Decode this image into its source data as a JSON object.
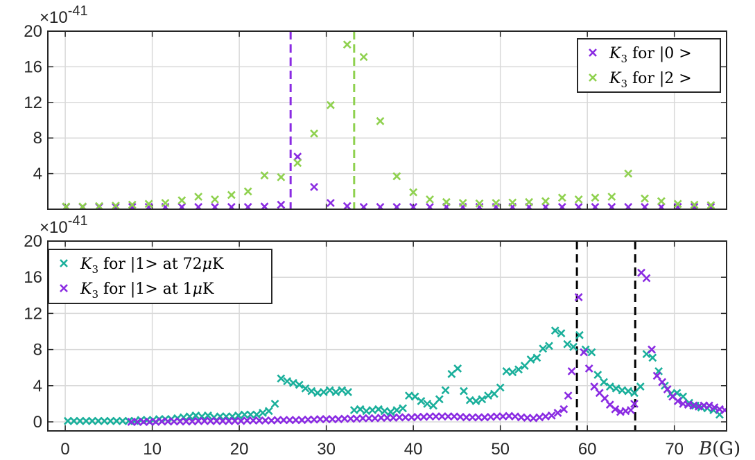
{
  "chart_data": [
    {
      "type": "scatter",
      "panel": "top",
      "multiplier": {
        "base": "×10",
        "exp": "-41"
      },
      "ylim": [
        0,
        20
      ],
      "yticks": [
        4,
        8,
        12,
        16,
        20
      ],
      "xlim": [
        -2,
        76
      ],
      "xticks": [
        0,
        10,
        20,
        30,
        40,
        50,
        60,
        70
      ],
      "xticklabels": [],
      "grid": true,
      "legend_position": "top-right",
      "vlines": [
        {
          "x": 25.9,
          "color": "#8a2be2",
          "style": "dashed"
        },
        {
          "x": 33.2,
          "color": "#8fd14f",
          "style": "dashed"
        }
      ],
      "series": [
        {
          "name": "K3 for |0 >",
          "legend": {
            "sym": "K",
            "sub": "3",
            "rest": " for |0 >"
          },
          "color": "#8a2be2",
          "x": [
            0.1,
            2.0,
            3.9,
            5.8,
            7.7,
            9.6,
            11.5,
            13.4,
            15.3,
            17.2,
            19.1,
            21.0,
            22.9,
            24.8,
            26.7,
            28.6,
            30.5,
            32.4,
            34.3,
            36.2,
            38.1,
            40.0,
            41.9,
            43.8,
            45.7,
            47.6,
            49.5,
            51.4,
            53.3,
            55.2,
            57.1,
            59.0,
            60.9,
            62.8,
            64.7,
            66.6,
            68.5,
            70.4,
            72.3,
            74.2
          ],
          "y": [
            0.25,
            0.25,
            0.25,
            0.25,
            0.25,
            0.25,
            0.25,
            0.25,
            0.25,
            0.25,
            0.25,
            0.25,
            0.3,
            0.5,
            5.9,
            2.5,
            0.7,
            0.35,
            0.25,
            0.25,
            0.25,
            0.25,
            0.25,
            0.25,
            0.25,
            0.25,
            0.25,
            0.25,
            0.25,
            0.25,
            0.25,
            0.25,
            0.25,
            0.25,
            0.25,
            0.25,
            0.25,
            0.25,
            0.25,
            0.25
          ]
        },
        {
          "name": "K3 for |2 >",
          "legend": {
            "sym": "K",
            "sub": "3",
            "rest": " for |2 >"
          },
          "color": "#8fd14f",
          "x": [
            0.1,
            2.0,
            3.9,
            5.8,
            7.7,
            9.6,
            11.5,
            13.4,
            15.3,
            17.2,
            19.1,
            21.0,
            22.9,
            24.8,
            26.7,
            28.6,
            30.5,
            32.4,
            34.3,
            36.2,
            38.1,
            40.0,
            41.9,
            43.8,
            45.7,
            47.6,
            49.5,
            51.4,
            53.3,
            55.2,
            57.1,
            59.0,
            60.9,
            62.8,
            64.7,
            66.6,
            68.5,
            70.4,
            72.3,
            74.2
          ],
          "y": [
            0.3,
            0.3,
            0.35,
            0.4,
            0.5,
            0.6,
            0.7,
            1.0,
            1.4,
            1.1,
            1.6,
            2.0,
            3.8,
            3.6,
            5.2,
            8.5,
            11.7,
            18.5,
            17.1,
            9.9,
            3.7,
            1.9,
            1.1,
            0.8,
            0.7,
            0.65,
            0.7,
            0.75,
            0.8,
            0.9,
            1.3,
            1.1,
            1.3,
            1.4,
            4.0,
            1.2,
            0.9,
            0.6,
            0.5,
            0.45
          ]
        }
      ]
    },
    {
      "type": "scatter",
      "panel": "bottom",
      "multiplier": {
        "base": "×10",
        "exp": "-41"
      },
      "ylim": [
        -1,
        20
      ],
      "yticks": [
        0,
        4,
        8,
        12,
        16,
        20
      ],
      "xlim": [
        -2,
        76
      ],
      "xticks": [
        0,
        10,
        20,
        30,
        40,
        50,
        60,
        70
      ],
      "xticklabels": [
        "0",
        "10",
        "20",
        "30",
        "40",
        "50",
        "60",
        "70"
      ],
      "xlabel": {
        "sym": "B",
        "rest": "(G)"
      },
      "grid": true,
      "legend_position": "top-left",
      "vlines": [
        {
          "x": 58.8,
          "color": "#000000",
          "style": "dashed"
        },
        {
          "x": 65.5,
          "color": "#000000",
          "style": "dashed"
        }
      ],
      "series": [
        {
          "name": "K3 for |1> at 72μK",
          "legend": {
            "sym": "K",
            "sub": "3",
            "rest": " for |1>  at 72",
            "mu": "μ",
            "unit": "K"
          },
          "color": "#1aaf9b",
          "x": [
            0.3,
            1.0,
            1.7,
            2.4,
            3.1,
            3.8,
            4.5,
            5.2,
            5.9,
            6.6,
            7.3,
            8.0,
            8.7,
            9.4,
            10.1,
            10.8,
            11.5,
            12.2,
            12.9,
            13.6,
            14.3,
            15.0,
            15.7,
            16.4,
            17.1,
            17.8,
            18.5,
            19.2,
            19.9,
            20.6,
            21.3,
            22.0,
            22.7,
            23.4,
            24.1,
            24.8,
            25.5,
            26.2,
            26.9,
            27.6,
            28.3,
            29.0,
            29.7,
            30.4,
            31.1,
            31.8,
            32.5,
            33.2,
            33.9,
            34.6,
            35.3,
            36.0,
            36.7,
            37.4,
            38.1,
            38.8,
            39.5,
            40.2,
            40.9,
            41.6,
            42.3,
            43.0,
            43.7,
            44.4,
            45.1,
            45.8,
            46.5,
            47.2,
            47.9,
            48.6,
            49.3,
            50.0,
            50.7,
            51.4,
            52.1,
            52.8,
            53.5,
            54.2,
            54.9,
            55.6,
            56.3,
            57.0,
            57.7,
            58.4,
            59.1,
            59.8,
            60.5,
            61.2,
            61.9,
            62.6,
            63.3,
            64.0,
            64.7,
            65.4,
            66.1,
            66.8,
            67.5,
            68.2,
            68.9,
            69.6,
            70.3,
            71.0,
            71.7,
            72.4,
            73.1,
            73.8,
            74.5,
            75.2
          ],
          "y": [
            0.1,
            0.1,
            0.1,
            0.1,
            0.1,
            0.1,
            0.1,
            0.1,
            0.1,
            0.1,
            0.1,
            0.1,
            0.2,
            0.2,
            0.2,
            0.3,
            0.3,
            0.3,
            0.4,
            0.5,
            0.6,
            0.7,
            0.6,
            0.7,
            0.5,
            0.6,
            0.6,
            0.6,
            0.7,
            0.8,
            0.8,
            0.8,
            1.0,
            1.2,
            2.0,
            4.8,
            4.5,
            4.3,
            4.1,
            3.7,
            3.4,
            3.2,
            3.3,
            3.5,
            3.3,
            3.5,
            3.3,
            1.3,
            1.4,
            1.2,
            1.3,
            1.4,
            1.2,
            1.1,
            1.3,
            1.5,
            2.9,
            2.8,
            2.3,
            2.0,
            1.8,
            2.5,
            3.5,
            5.3,
            5.9,
            3.4,
            2.4,
            2.3,
            2.5,
            2.9,
            3.1,
            3.8,
            5.6,
            5.5,
            5.8,
            6.2,
            6.9,
            7.1,
            8.1,
            8.4,
            10.1,
            9.8,
            8.6,
            8.3,
            9.6,
            8.0,
            7.7,
            5.2,
            4.4,
            3.9,
            3.7,
            3.5,
            3.4,
            3.2,
            3.9,
            7.5,
            7.1,
            5.6,
            4.0,
            3.1,
            3.2,
            2.8,
            2.1,
            1.8,
            1.6,
            1.5,
            1.3,
            0.8
          ]
        },
        {
          "name": "K3 for |1> at 1μK",
          "legend": {
            "sym": "K",
            "sub": "3",
            "rest": " for |1>  at 1",
            "mu": "μ",
            "unit": "K"
          },
          "color": "#8a2be2",
          "x": [
            7.6,
            8.3,
            9.0,
            9.7,
            10.4,
            11.1,
            11.8,
            12.5,
            13.2,
            13.9,
            14.6,
            15.3,
            16.0,
            16.7,
            17.4,
            18.1,
            18.8,
            19.5,
            20.2,
            20.9,
            21.6,
            22.3,
            23.0,
            23.7,
            24.4,
            25.1,
            25.8,
            26.5,
            27.2,
            27.9,
            28.6,
            29.3,
            30.0,
            30.7,
            31.4,
            32.1,
            32.8,
            33.5,
            34.2,
            34.9,
            35.6,
            36.3,
            37.0,
            37.7,
            38.4,
            39.1,
            39.8,
            40.5,
            41.2,
            41.9,
            42.6,
            43.3,
            44.0,
            44.7,
            45.4,
            46.1,
            46.8,
            47.5,
            48.2,
            48.9,
            49.6,
            50.3,
            51.0,
            51.7,
            52.4,
            53.1,
            53.8,
            54.5,
            55.2,
            55.9,
            56.6,
            57.3,
            57.8,
            58.2,
            59.0,
            59.6,
            60.2,
            60.8,
            61.4,
            62.0,
            62.6,
            63.2,
            63.8,
            64.4,
            65.0,
            65.4,
            66.2,
            66.8,
            67.4,
            68.0,
            68.6,
            69.2,
            69.8,
            70.4,
            71.0,
            71.6,
            72.2,
            72.8,
            73.4,
            74.0,
            74.6,
            75.2,
            75.8
          ],
          "y": [
            0.0,
            0.0,
            0.0,
            0.0,
            0.0,
            0.05,
            0.05,
            0.05,
            0.05,
            0.05,
            0.05,
            0.1,
            0.1,
            0.1,
            0.1,
            0.1,
            0.1,
            0.1,
            0.1,
            0.15,
            0.15,
            0.15,
            0.15,
            0.15,
            0.2,
            0.2,
            0.2,
            0.2,
            0.2,
            0.25,
            0.25,
            0.3,
            0.3,
            0.3,
            0.3,
            0.35,
            0.35,
            0.35,
            0.4,
            0.4,
            0.4,
            0.45,
            0.45,
            0.45,
            0.5,
            0.5,
            0.5,
            0.55,
            0.55,
            0.6,
            0.6,
            0.6,
            0.6,
            0.6,
            0.55,
            0.5,
            0.5,
            0.5,
            0.5,
            0.55,
            0.6,
            0.6,
            0.65,
            0.6,
            0.5,
            0.45,
            0.4,
            0.5,
            0.6,
            0.7,
            1.0,
            1.4,
            2.9,
            5.6,
            13.8,
            7.7,
            5.9,
            3.9,
            3.2,
            2.6,
            1.9,
            1.4,
            1.1,
            1.2,
            1.3,
            2.0,
            16.5,
            15.9,
            8.0,
            5.1,
            4.4,
            3.6,
            2.8,
            2.3,
            2.0,
            1.9,
            1.8,
            1.7,
            1.8,
            1.8,
            1.6,
            1.4,
            1.3
          ]
        }
      ]
    }
  ]
}
